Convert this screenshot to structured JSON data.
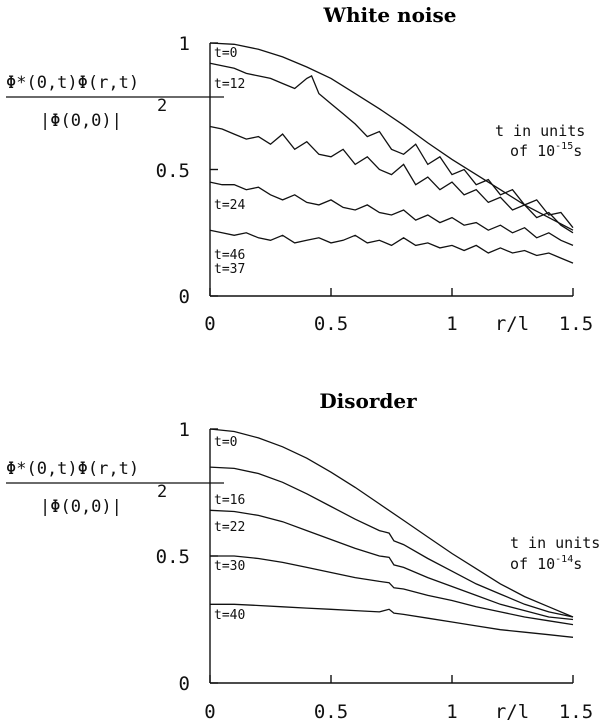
{
  "chart_data": [
    {
      "type": "line",
      "title": "White noise",
      "ylabel_num": "Φ*(0,t)Φ(r,t)",
      "ylabel_den": "|Φ(0,0)|",
      "ylabel_exp": "2",
      "xlabel": "r/l",
      "annotation": [
        "t in units",
        "of 10",
        "-15",
        "s"
      ],
      "xlim": [
        0,
        1.5
      ],
      "ylim": [
        0,
        1
      ],
      "xticks": [
        "0",
        "0.5",
        "1",
        "1.5"
      ],
      "yticks": [
        "0",
        "0.5",
        "1"
      ],
      "series": [
        {
          "name": "t=0",
          "x": [
            0,
            0.1,
            0.2,
            0.3,
            0.4,
            0.5,
            0.6,
            0.7,
            0.8,
            0.9,
            1.0,
            1.1,
            1.2,
            1.3,
            1.4,
            1.5
          ],
          "y": [
            1.0,
            0.995,
            0.975,
            0.945,
            0.905,
            0.86,
            0.8,
            0.74,
            0.675,
            0.605,
            0.54,
            0.48,
            0.42,
            0.36,
            0.31,
            0.26
          ]
        },
        {
          "name": "t=12",
          "x": [
            0,
            0.05,
            0.1,
            0.15,
            0.2,
            0.25,
            0.3,
            0.35,
            0.4,
            0.42,
            0.45,
            0.5,
            0.55,
            0.6,
            0.65,
            0.7,
            0.75,
            0.8,
            0.85,
            0.9,
            0.95,
            1.0,
            1.05,
            1.1,
            1.15,
            1.2,
            1.25,
            1.3,
            1.35,
            1.4,
            1.45,
            1.5
          ],
          "y": [
            0.92,
            0.91,
            0.9,
            0.88,
            0.87,
            0.86,
            0.84,
            0.82,
            0.86,
            0.87,
            0.8,
            0.76,
            0.72,
            0.68,
            0.63,
            0.65,
            0.58,
            0.56,
            0.6,
            0.52,
            0.55,
            0.48,
            0.5,
            0.44,
            0.46,
            0.4,
            0.42,
            0.36,
            0.38,
            0.32,
            0.33,
            0.27
          ]
        },
        {
          "name": "t=24",
          "x": [
            0,
            0.05,
            0.1,
            0.15,
            0.2,
            0.25,
            0.3,
            0.35,
            0.4,
            0.45,
            0.5,
            0.55,
            0.6,
            0.65,
            0.7,
            0.75,
            0.8,
            0.85,
            0.9,
            0.95,
            1.0,
            1.05,
            1.1,
            1.15,
            1.2,
            1.25,
            1.3,
            1.35,
            1.4,
            1.45,
            1.5
          ],
          "y": [
            0.67,
            0.66,
            0.64,
            0.62,
            0.63,
            0.6,
            0.64,
            0.58,
            0.61,
            0.56,
            0.55,
            0.58,
            0.52,
            0.55,
            0.5,
            0.48,
            0.52,
            0.44,
            0.47,
            0.42,
            0.45,
            0.4,
            0.42,
            0.37,
            0.39,
            0.34,
            0.36,
            0.31,
            0.33,
            0.28,
            0.25
          ]
        },
        {
          "name": "t=37",
          "x": [
            0,
            0.05,
            0.1,
            0.15,
            0.2,
            0.25,
            0.3,
            0.35,
            0.4,
            0.45,
            0.5,
            0.55,
            0.6,
            0.65,
            0.7,
            0.75,
            0.8,
            0.85,
            0.9,
            0.95,
            1.0,
            1.05,
            1.1,
            1.15,
            1.2,
            1.25,
            1.3,
            1.35,
            1.4,
            1.45,
            1.5
          ],
          "y": [
            0.45,
            0.44,
            0.44,
            0.42,
            0.43,
            0.4,
            0.38,
            0.4,
            0.37,
            0.36,
            0.38,
            0.35,
            0.34,
            0.36,
            0.33,
            0.32,
            0.34,
            0.3,
            0.32,
            0.29,
            0.31,
            0.28,
            0.29,
            0.26,
            0.28,
            0.25,
            0.27,
            0.23,
            0.25,
            0.22,
            0.2
          ]
        },
        {
          "name": "t=46",
          "x": [
            0,
            0.05,
            0.1,
            0.15,
            0.2,
            0.25,
            0.3,
            0.35,
            0.4,
            0.45,
            0.5,
            0.55,
            0.6,
            0.65,
            0.7,
            0.75,
            0.8,
            0.85,
            0.9,
            0.95,
            1.0,
            1.05,
            1.1,
            1.15,
            1.2,
            1.25,
            1.3,
            1.35,
            1.4,
            1.45,
            1.5
          ],
          "y": [
            0.26,
            0.25,
            0.24,
            0.25,
            0.23,
            0.22,
            0.24,
            0.21,
            0.22,
            0.23,
            0.21,
            0.22,
            0.24,
            0.21,
            0.22,
            0.2,
            0.23,
            0.2,
            0.21,
            0.19,
            0.2,
            0.18,
            0.2,
            0.17,
            0.19,
            0.17,
            0.18,
            0.16,
            0.17,
            0.15,
            0.13
          ]
        }
      ]
    },
    {
      "type": "line",
      "title": "Disorder",
      "ylabel_num": "Φ*(0,t)Φ(r,t)",
      "ylabel_den": "|Φ(0,0)|",
      "ylabel_exp": "2",
      "xlabel": "r/l",
      "annotation": [
        "t in units",
        "of 10",
        "-14",
        "s"
      ],
      "xlim": [
        0,
        1.5
      ],
      "ylim": [
        0,
        1
      ],
      "xticks": [
        "0",
        "0.5",
        "1",
        "1.5"
      ],
      "yticks": [
        "0",
        "0.5",
        "1"
      ],
      "series": [
        {
          "name": "t=0",
          "x": [
            0,
            0.1,
            0.2,
            0.3,
            0.4,
            0.5,
            0.6,
            0.7,
            0.8,
            0.9,
            1.0,
            1.1,
            1.2,
            1.3,
            1.4,
            1.5
          ],
          "y": [
            1.0,
            0.99,
            0.965,
            0.93,
            0.885,
            0.83,
            0.77,
            0.705,
            0.64,
            0.575,
            0.51,
            0.45,
            0.39,
            0.34,
            0.3,
            0.26
          ]
        },
        {
          "name": "t=16",
          "x": [
            0,
            0.1,
            0.2,
            0.3,
            0.4,
            0.5,
            0.6,
            0.7,
            0.74,
            0.76,
            0.8,
            0.9,
            1.0,
            1.1,
            1.2,
            1.3,
            1.4,
            1.5
          ],
          "y": [
            0.85,
            0.845,
            0.825,
            0.79,
            0.745,
            0.695,
            0.645,
            0.6,
            0.59,
            0.56,
            0.545,
            0.49,
            0.44,
            0.39,
            0.35,
            0.31,
            0.28,
            0.26
          ]
        },
        {
          "name": "t=22",
          "x": [
            0,
            0.1,
            0.2,
            0.3,
            0.4,
            0.5,
            0.6,
            0.7,
            0.74,
            0.76,
            0.8,
            0.9,
            1.0,
            1.1,
            1.2,
            1.3,
            1.4,
            1.5
          ],
          "y": [
            0.68,
            0.675,
            0.66,
            0.635,
            0.6,
            0.565,
            0.53,
            0.5,
            0.495,
            0.465,
            0.455,
            0.415,
            0.38,
            0.345,
            0.31,
            0.285,
            0.26,
            0.25
          ]
        },
        {
          "name": "t=30",
          "x": [
            0,
            0.1,
            0.2,
            0.3,
            0.4,
            0.5,
            0.6,
            0.7,
            0.74,
            0.76,
            0.8,
            0.9,
            1.0,
            1.1,
            1.2,
            1.3,
            1.4,
            1.5
          ],
          "y": [
            0.5,
            0.5,
            0.49,
            0.475,
            0.455,
            0.435,
            0.415,
            0.4,
            0.395,
            0.375,
            0.37,
            0.345,
            0.325,
            0.3,
            0.28,
            0.26,
            0.245,
            0.23
          ]
        },
        {
          "name": "t=40",
          "x": [
            0,
            0.1,
            0.2,
            0.3,
            0.4,
            0.5,
            0.6,
            0.7,
            0.74,
            0.76,
            0.8,
            0.9,
            1.0,
            1.1,
            1.2,
            1.3,
            1.4,
            1.5
          ],
          "y": [
            0.31,
            0.31,
            0.305,
            0.3,
            0.295,
            0.29,
            0.285,
            0.28,
            0.29,
            0.275,
            0.27,
            0.255,
            0.24,
            0.225,
            0.21,
            0.2,
            0.19,
            0.18
          ]
        }
      ]
    }
  ]
}
